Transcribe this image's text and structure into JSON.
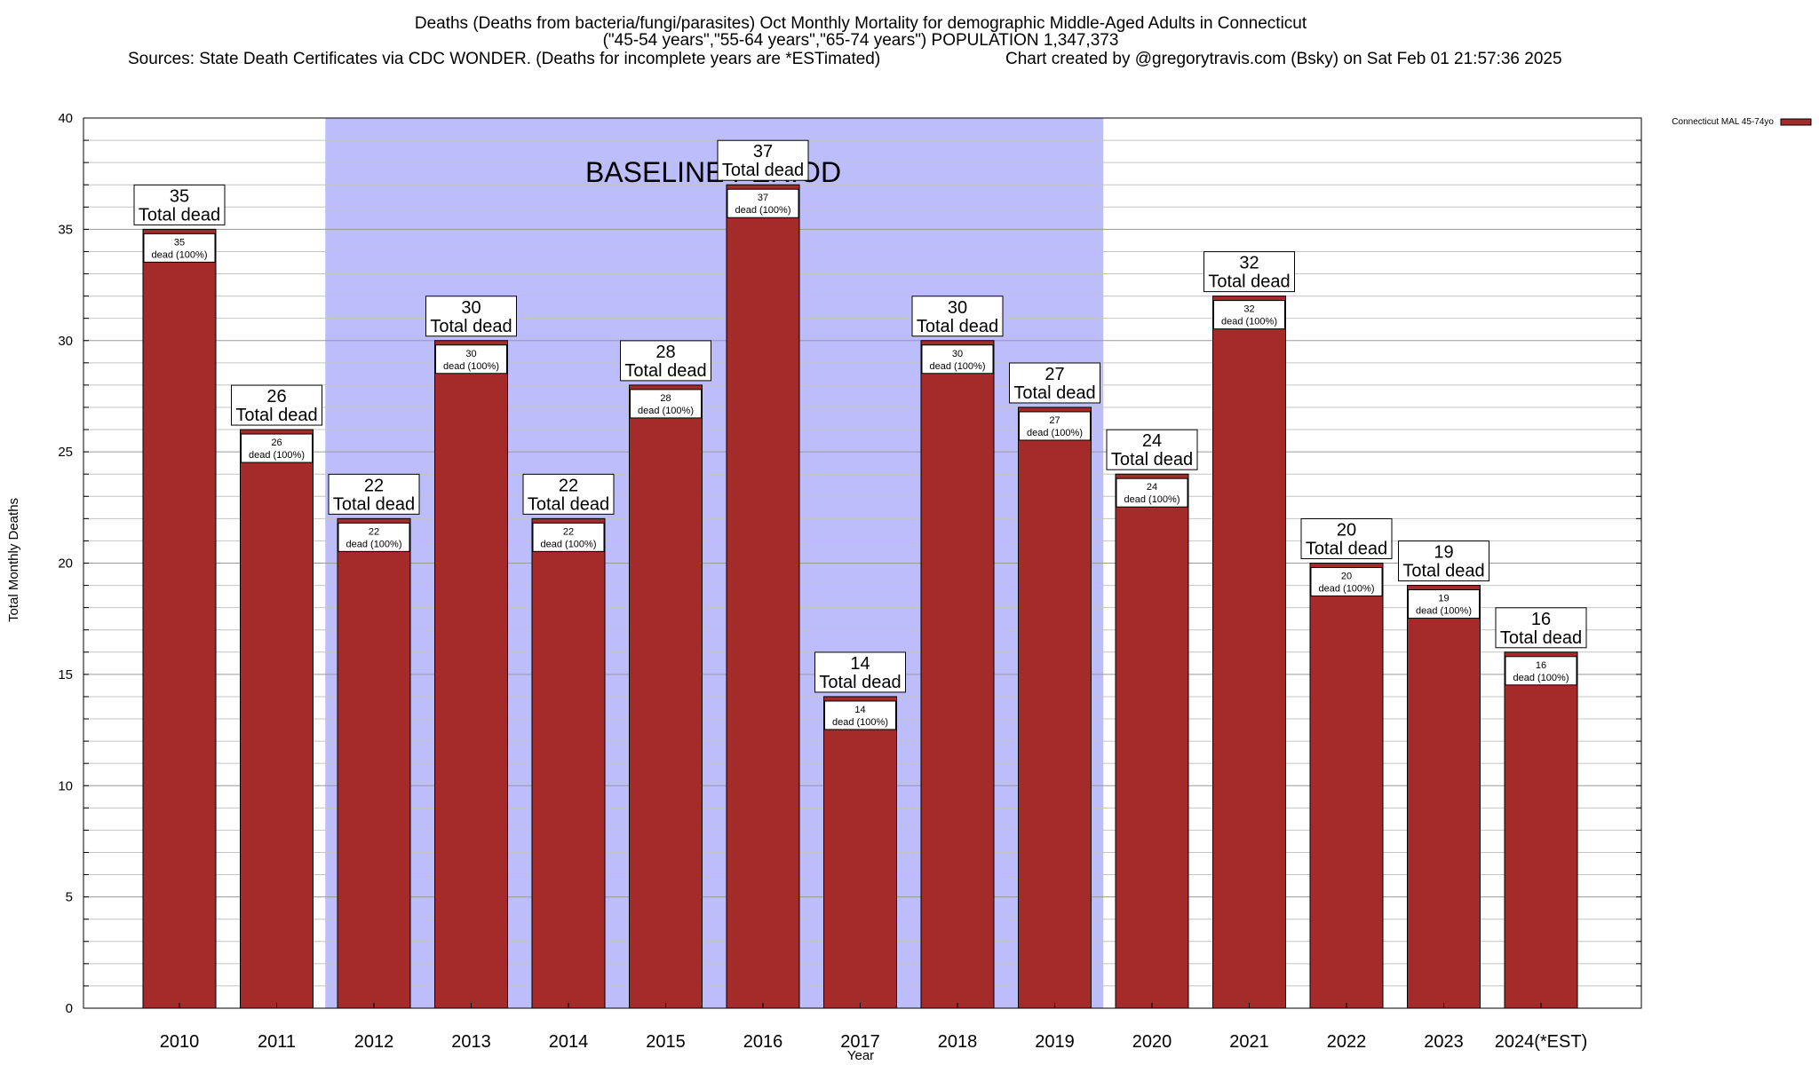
{
  "chart_data": {
    "type": "bar",
    "title_lines": [
      "Deaths (Deaths from bacteria/fungi/parasites) Oct Monthly Mortality for demographic Middle-Aged Adults in Connecticut",
      "(\"45-54 years\",\"55-64 years\",\"65-74 years\") POPULATION 1,347,373",
      "Sources: State Death Certificates via CDC WONDER. (Deaths for incomplete years are *ESTimated)",
      "Chart created by @gregorytravis.com (Bsky) on Sat Feb 01 21:57:36 2025"
    ],
    "xlabel": "Year",
    "ylabel": "Total Monthly Deaths",
    "ylim": [
      0,
      40
    ],
    "y_major_ticks": [
      0,
      5,
      10,
      15,
      20,
      25,
      30,
      35,
      40
    ],
    "y_minor_step": 1,
    "grid": true,
    "legend_position": "top-right",
    "baseline_period": {
      "label": "BASELINE PERIOD",
      "start_category": "2012",
      "end_category": "2019",
      "color": "#bdbdfc"
    },
    "categories": [
      "2010",
      "2011",
      "2012",
      "2013",
      "2014",
      "2015",
      "2016",
      "2017",
      "2018",
      "2019",
      "2020",
      "2021",
      "2022",
      "2023",
      "2024(*EST)"
    ],
    "series": [
      {
        "name": "Connecticut MAL 45-74yo",
        "color": "#a52a2a",
        "values": [
          35,
          26,
          22,
          30,
          22,
          28,
          37,
          14,
          30,
          27,
          24,
          32,
          20,
          19,
          16
        ]
      }
    ],
    "top_labels": [
      {
        "value": "35",
        "text": "Total dead"
      },
      {
        "value": "26",
        "text": "Total dead"
      },
      {
        "value": "22",
        "text": "Total dead"
      },
      {
        "value": "30",
        "text": "Total dead"
      },
      {
        "value": "22",
        "text": "Total dead"
      },
      {
        "value": "28",
        "text": "Total dead"
      },
      {
        "value": "37",
        "text": "Total dead"
      },
      {
        "value": "14",
        "text": "Total dead"
      },
      {
        "value": "30",
        "text": "Total dead"
      },
      {
        "value": "27",
        "text": "Total dead"
      },
      {
        "value": "24",
        "text": "Total dead"
      },
      {
        "value": "32",
        "text": "Total dead"
      },
      {
        "value": "20",
        "text": "Total dead"
      },
      {
        "value": "19",
        "text": "Total dead"
      },
      {
        "value": "16",
        "text": "Total dead"
      }
    ],
    "inner_labels": [
      {
        "value": "35",
        "text": "dead (100%)"
      },
      {
        "value": "26",
        "text": "dead (100%)"
      },
      {
        "value": "22",
        "text": "dead (100%)"
      },
      {
        "value": "30",
        "text": "dead (100%)"
      },
      {
        "value": "22",
        "text": "dead (100%)"
      },
      {
        "value": "28",
        "text": "dead (100%)"
      },
      {
        "value": "37",
        "text": "dead (100%)"
      },
      {
        "value": "14",
        "text": "dead (100%)"
      },
      {
        "value": "30",
        "text": "dead (100%)"
      },
      {
        "value": "27",
        "text": "dead (100%)"
      },
      {
        "value": "24",
        "text": "dead (100%)"
      },
      {
        "value": "32",
        "text": "dead (100%)"
      },
      {
        "value": "20",
        "text": "dead (100%)"
      },
      {
        "value": "19",
        "text": "dead (100%)"
      },
      {
        "value": "16",
        "text": "dead (100%)"
      }
    ]
  }
}
